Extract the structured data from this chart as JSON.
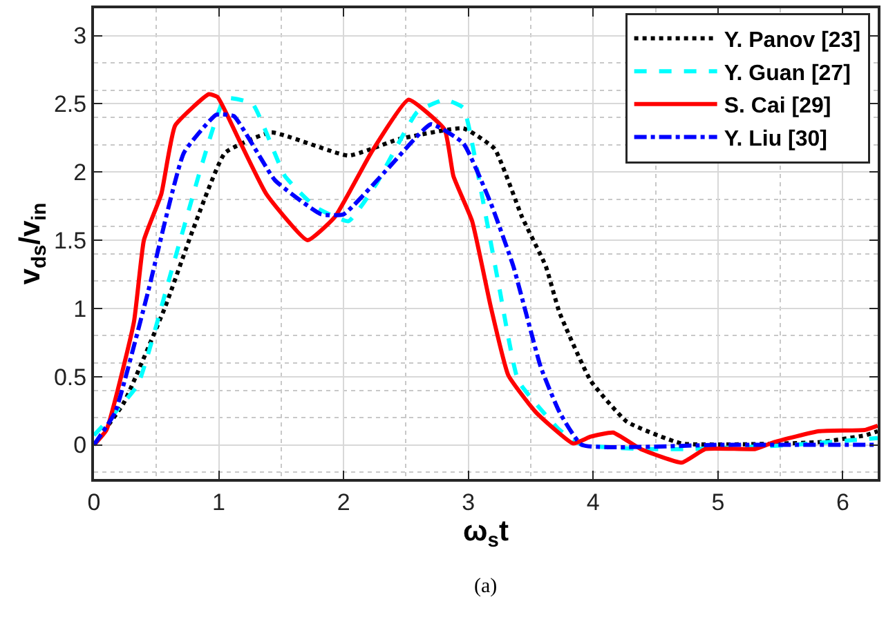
{
  "chart_data": {
    "type": "line",
    "xlabel": "ω$_{s}$t",
    "ylabel": "v$_{ds}$/v$_{in}$",
    "xlim": [
      0,
      6.28
    ],
    "ylim": [
      -0.25,
      3.2
    ],
    "xticks": [
      0,
      1,
      2,
      3,
      4,
      5,
      6
    ],
    "yticks": [
      0,
      0.5,
      1,
      1.5,
      2,
      2.5,
      3
    ],
    "grid": true,
    "legend": "top right",
    "annotations": [
      "(a)"
    ],
    "series": [
      {
        "name": "Y. Panov [23]",
        "color": "#000000",
        "line_style": "dotted",
        "x": [
          0,
          0.24,
          0.57,
          0.79,
          1.05,
          1.42,
          2.04,
          2.44,
          2.96,
          3.21,
          3.43,
          3.62,
          3.73,
          3.98,
          4.27,
          4.71,
          5.81,
          6.18,
          6.28
        ],
        "values": [
          0,
          0.31,
          1.01,
          1.57,
          2.14,
          2.29,
          2.12,
          2.24,
          2.32,
          2.17,
          1.67,
          1.31,
          0.97,
          0.47,
          0.17,
          0.01,
          0.02,
          0.07,
          0.1
        ]
      },
      {
        "name": "Y. Guan [27]",
        "color": "#00ffff",
        "line_style": "dashed",
        "x": [
          0,
          0.35,
          0.61,
          0.87,
          1.05,
          1.27,
          1.53,
          1.78,
          2.04,
          2.26,
          2.59,
          2.81,
          2.96,
          3.1,
          3.25,
          3.4,
          3.73,
          3.91,
          4.4,
          4.8,
          5.6,
          6.28
        ],
        "values": [
          0.07,
          0.44,
          1.24,
          2.07,
          2.54,
          2.5,
          1.97,
          1.74,
          1.64,
          1.91,
          2.44,
          2.53,
          2.47,
          1.87,
          1.14,
          0.47,
          0.11,
          0,
          -0.03,
          -0.03,
          0,
          0.05
        ]
      },
      {
        "name": "S. Cai [29]",
        "color": "#ff0000",
        "line_style": "solid",
        "x": [
          0,
          0.1,
          0.32,
          0.4,
          0.54,
          0.65,
          0.92,
          0.99,
          1.16,
          1.38,
          1.71,
          1.93,
          2.22,
          2.52,
          2.81,
          2.88,
          3.03,
          3.18,
          3.32,
          3.54,
          3.84,
          3.98,
          4.16,
          4.38,
          4.71,
          4.9,
          5.3,
          5.45,
          5.81,
          6.18,
          6.28
        ],
        "values": [
          0,
          0.11,
          0.9,
          1.5,
          1.84,
          2.34,
          2.57,
          2.55,
          2.24,
          1.84,
          1.5,
          1.67,
          2.14,
          2.53,
          2.31,
          1.97,
          1.64,
          1.01,
          0.51,
          0.24,
          0.01,
          0.06,
          0.09,
          -0.03,
          -0.13,
          -0.03,
          -0.03,
          0.02,
          0.1,
          0.11,
          0.14
        ]
      },
      {
        "name": "Y. Liu [30]",
        "color": "#0000ff",
        "line_style": "dashdot",
        "x": [
          0,
          0.17,
          0.43,
          0.72,
          0.98,
          1.12,
          1.45,
          1.82,
          2.0,
          2.37,
          2.7,
          2.96,
          3.18,
          3.36,
          3.58,
          3.73,
          3.91,
          5.0,
          6.28
        ],
        "values": [
          0,
          0.24,
          1.11,
          2.14,
          2.42,
          2.41,
          1.94,
          1.69,
          1.69,
          2.04,
          2.35,
          2.21,
          1.77,
          1.31,
          0.57,
          0.24,
          0,
          0,
          0
        ]
      }
    ]
  }
}
